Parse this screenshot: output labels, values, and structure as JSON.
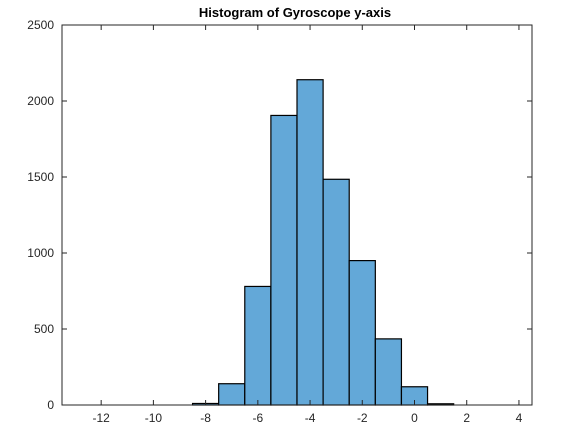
{
  "chart_data": {
    "type": "bar",
    "title": "Histogram of Gyroscope y-axis",
    "xlabel": "",
    "ylabel": "",
    "xlim": [
      -13.5,
      4.5
    ],
    "ylim": [
      0,
      2500
    ],
    "xticks": [
      -12,
      -10,
      -8,
      -6,
      -4,
      -2,
      0,
      2,
      4
    ],
    "yticks": [
      0,
      500,
      1000,
      1500,
      2000,
      2500
    ],
    "xtick_labels": [
      "-12",
      "-10",
      "-8",
      "-6",
      "-4",
      "-2",
      "0",
      "2",
      "4"
    ],
    "ytick_labels": [
      "0",
      "500",
      "1000",
      "1500",
      "2000",
      "2500"
    ],
    "bin_edges": [
      -8.5,
      -7.5,
      -6.5,
      -5.5,
      -4.5,
      -3.5,
      -2.5,
      -1.5,
      -0.5,
      0.5,
      1.5
    ],
    "values": [
      10,
      140,
      780,
      1905,
      2140,
      1485,
      950,
      435,
      120,
      8
    ],
    "bar_color": "#63a8d8",
    "edge_color": "#000000",
    "grid": false,
    "box": true
  }
}
